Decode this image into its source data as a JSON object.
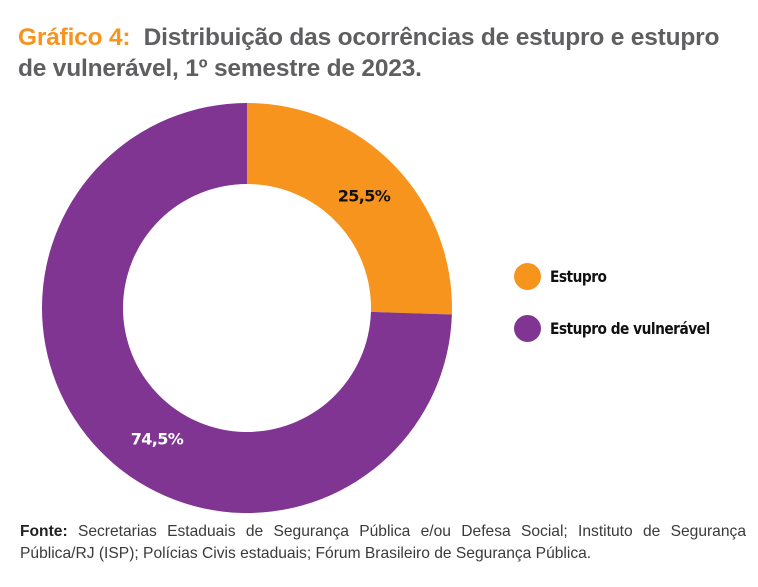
{
  "title": {
    "lead": "Gráfico 4:",
    "text": "Distribuição das ocorrências de estupro e estupro de vulnerável, 1º semestre de 2023."
  },
  "chart_data": {
    "type": "pie",
    "variant": "donut",
    "title": "Gráfico 4: Distribuição das ocorrências de estupro e estupro de vulnerável, 1º semestre de 2023.",
    "unit": "%",
    "categories": [
      "Estupro",
      "Estupro de vulnerável"
    ],
    "values": [
      25.5,
      74.5
    ],
    "data_labels": [
      "25,5%",
      "74,5%"
    ],
    "colors": [
      "#f7941d",
      "#7f3591"
    ],
    "label_colors": [
      "#111111",
      "#ffffff"
    ],
    "start_angle": "12 o'clock",
    "direction": "clockwise",
    "legend": {
      "position": "right",
      "entries": [
        "Estupro",
        "Estupro de vulnerável"
      ]
    }
  },
  "source": {
    "label": "Fonte:",
    "text": "Secretarias Estaduais de Segurança Pública e/ou Defesa Social; Instituto de Segurança Pública/RJ (ISP); Polícias Civis estaduais; Fórum Brasileiro de Segurança Pública."
  }
}
